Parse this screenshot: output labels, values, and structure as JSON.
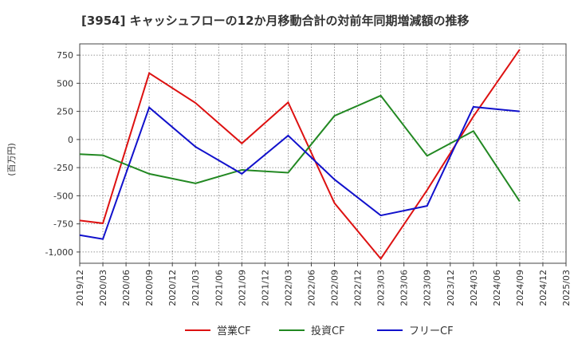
{
  "chart_data": {
    "type": "line",
    "title": "[3954]  キャッシュフローの12か月移動合計の対前年同期増減額の推移",
    "ylabel": "(百万円)",
    "xlabel": "",
    "ylim": [
      -1100,
      850
    ],
    "yticks": [
      750,
      500,
      250,
      0,
      -250,
      -500,
      -750,
      -1000
    ],
    "ytick_labels": [
      "750",
      "500",
      "250",
      "0",
      "-250",
      "-500",
      "-750",
      "-1,000"
    ],
    "x_ticks": [
      "2019/12",
      "2020/03",
      "2020/06",
      "2020/09",
      "2020/12",
      "2021/03",
      "2021/06",
      "2021/09",
      "2021/12",
      "2022/03",
      "2022/06",
      "2022/09",
      "2022/12",
      "2023/03",
      "2023/06",
      "2023/09",
      "2023/12",
      "2024/03",
      "2024/06",
      "2024/09",
      "2024/12",
      "2025/03"
    ],
    "grid": true,
    "legend_position": "bottom",
    "series": [
      {
        "name": "営業CF",
        "color": "#dd1111",
        "x": [
          "2019/12",
          "2020/03",
          "2020/09",
          "2021/03",
          "2021/09",
          "2022/03",
          "2022/09",
          "2023/03",
          "2023/09",
          "2024/03",
          "2024/09"
        ],
        "values": [
          -720,
          -745,
          590,
          325,
          -35,
          330,
          -565,
          -1060,
          -450,
          205,
          800
        ]
      },
      {
        "name": "投資CF",
        "color": "#228822",
        "x": [
          "2019/12",
          "2020/03",
          "2020/09",
          "2021/03",
          "2021/09",
          "2022/03",
          "2022/09",
          "2023/03",
          "2023/09",
          "2024/03",
          "2024/09"
        ],
        "values": [
          -130,
          -140,
          -305,
          -390,
          -270,
          -295,
          210,
          390,
          -145,
          75,
          -550
        ]
      },
      {
        "name": "フリーCF",
        "color": "#1111cc",
        "x": [
          "2019/12",
          "2020/03",
          "2020/09",
          "2021/03",
          "2021/09",
          "2022/03",
          "2022/09",
          "2023/03",
          "2023/09",
          "2024/03",
          "2024/09"
        ],
        "values": [
          -850,
          -885,
          285,
          -65,
          -305,
          35,
          -355,
          -675,
          -590,
          290,
          250
        ]
      }
    ]
  }
}
